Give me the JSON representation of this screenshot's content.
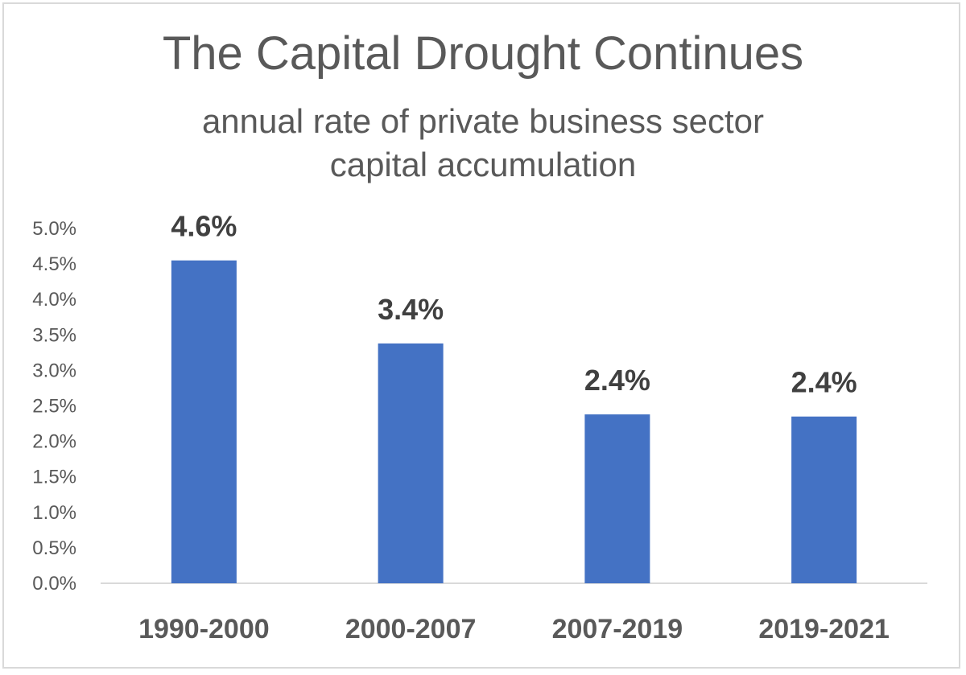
{
  "chart_data": {
    "type": "bar",
    "title": "The Capital Drought Continues",
    "subtitle": [
      "annual rate of private business sector",
      "capital accumulation"
    ],
    "categories": [
      "1990-2000",
      "2000-2007",
      "2007-2019",
      "2019-2021"
    ],
    "values": [
      4.55,
      3.38,
      2.38,
      2.35
    ],
    "data_labels": [
      "4.6%",
      "3.4%",
      "2.4%",
      "2.4%"
    ],
    "xlabel": "",
    "ylabel": "",
    "ylim": [
      0,
      5.0
    ],
    "y_ticks": [
      "0.0%",
      "0.5%",
      "1.0%",
      "1.5%",
      "2.0%",
      "2.5%",
      "3.0%",
      "3.5%",
      "4.0%",
      "4.5%",
      "5.0%"
    ],
    "grid": false,
    "legend": "none",
    "bar_color": "#4472c4"
  }
}
